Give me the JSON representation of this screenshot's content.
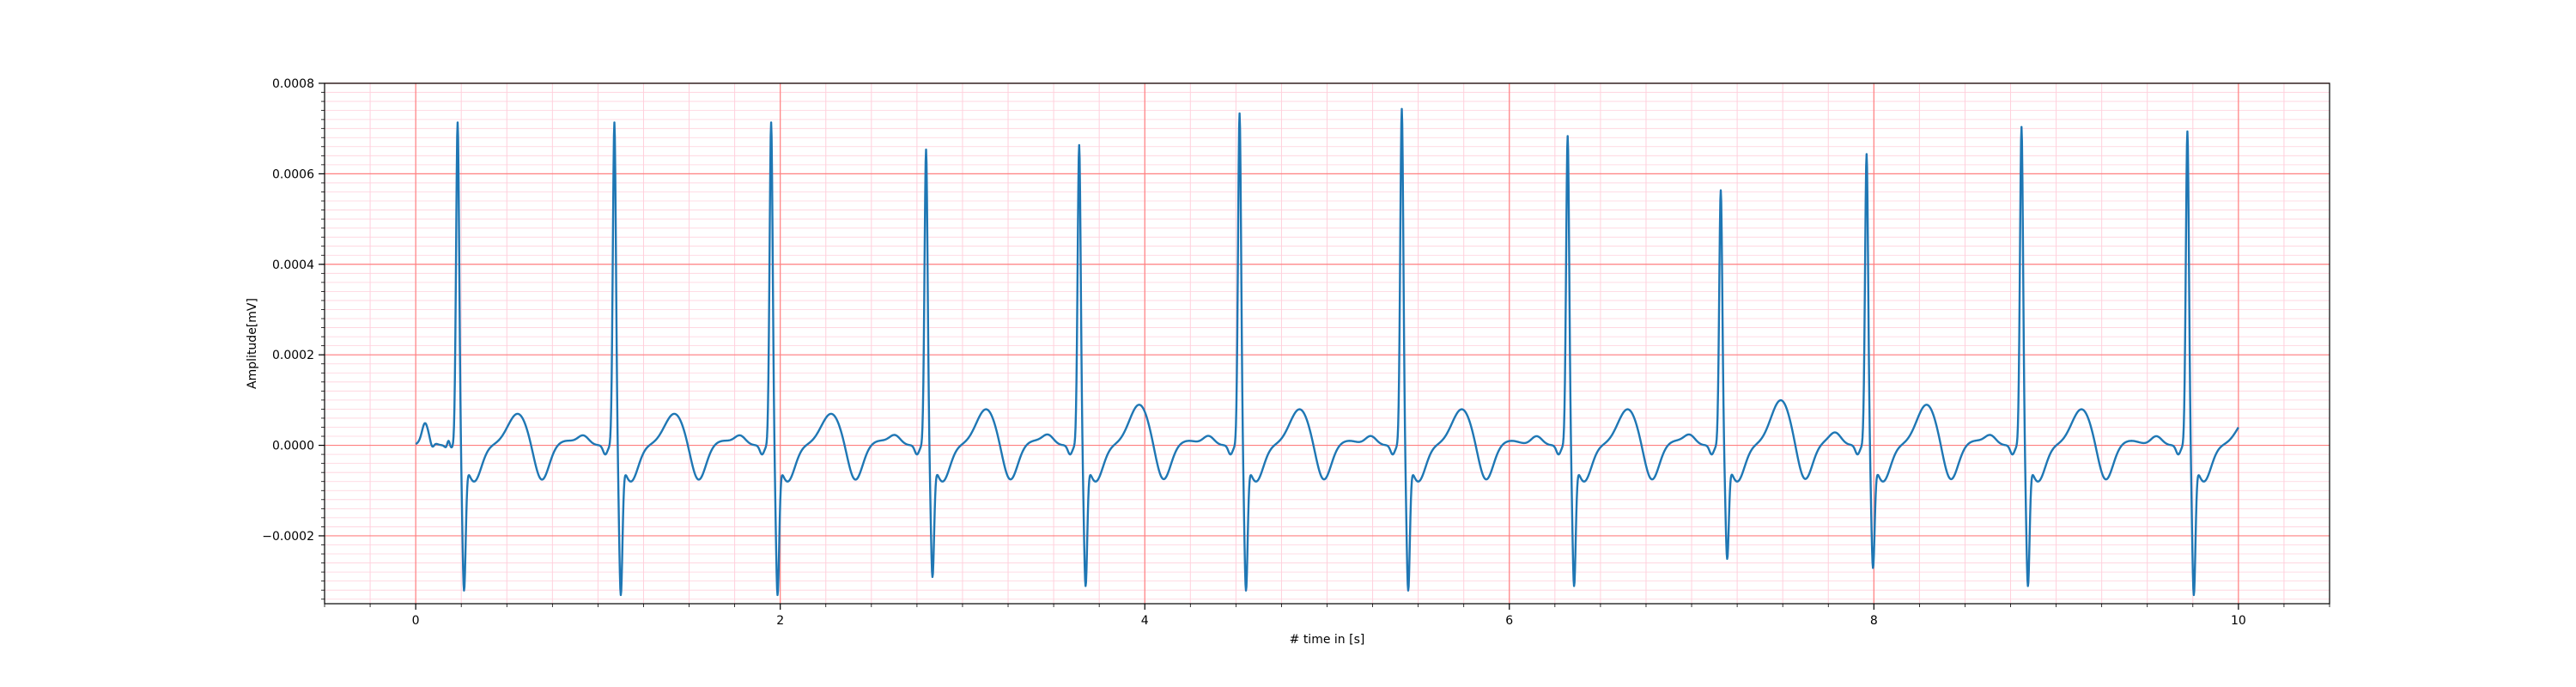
{
  "chart_data": {
    "type": "line",
    "title": "",
    "xlabel": "# time in [s]",
    "ylabel": "Amplitude[mV]",
    "xlim": [
      -0.5,
      10.5
    ],
    "ylim": [
      -0.00035,
      0.0008
    ],
    "x_ticks": [
      0,
      2,
      4,
      6,
      8,
      10
    ],
    "x_tick_labels": [
      "0",
      "2",
      "4",
      "6",
      "8",
      "10"
    ],
    "y_ticks": [
      -0.0002,
      0,
      0.0002,
      0.0004,
      0.0006,
      0.0008
    ],
    "y_tick_labels": [
      "−0.0002",
      "0.0000",
      "0.0002",
      "0.0004",
      "0.0006",
      "0.0008"
    ],
    "grid": {
      "major": true,
      "minor": true,
      "major_color": "#ff8080",
      "minor_color": "#ffd0dc"
    },
    "line_color": "#1f77b4",
    "series": [
      {
        "name": "",
        "x_start": 0,
        "x_end": 10,
        "baseline_points": [
          [
            0,
            0
          ],
          [
            0.05,
            -1e-05
          ],
          [
            0.1,
            3e-05
          ],
          [
            0.15,
            0
          ],
          [
            0.2,
            2e-05
          ]
        ],
        "r_peaks_s": [
          0.23,
          1.09,
          1.95,
          2.8,
          3.64,
          4.52,
          5.41,
          6.32,
          7.16,
          7.96,
          8.81,
          9.72
        ],
        "r_peak_values": [
          0.00072,
          0.00072,
          0.00072,
          0.00066,
          0.00067,
          0.00074,
          0.00075,
          0.00069,
          0.00057,
          0.00065,
          0.00071,
          0.0007
        ],
        "s_trough_values": [
          -0.00029,
          -0.0003,
          -0.0003,
          -0.00026,
          -0.00028,
          -0.00029,
          -0.00029,
          -0.00028,
          -0.00022,
          -0.00024,
          -0.00028,
          -0.0003
        ],
        "t_wave_values": [
          7e-05,
          7e-05,
          7e-05,
          8e-05,
          9e-05,
          8e-05,
          8e-05,
          8e-05,
          0.0001,
          9e-05,
          8e-05,
          6e-05
        ],
        "end_value": 3e-05
      }
    ]
  }
}
